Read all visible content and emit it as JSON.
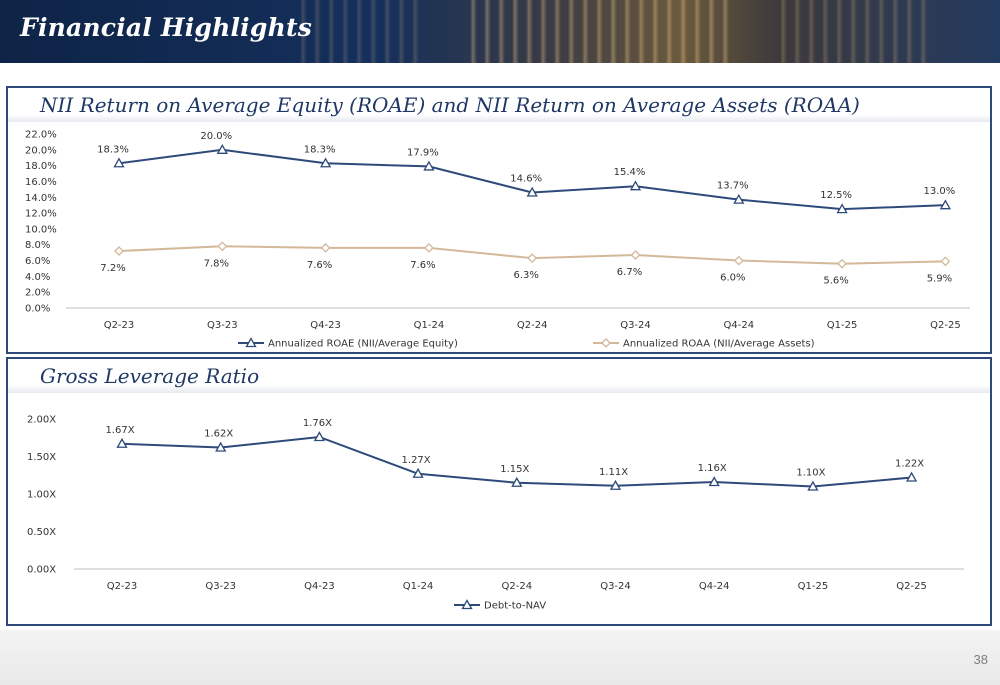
{
  "header": {
    "title": "Financial Highlights"
  },
  "page_number": "38",
  "colors": {
    "roae": "#2e4a7a",
    "roaa": "#d4b89a",
    "leverage": "#2e4a7a",
    "panel_border": "#2d4a7a",
    "banner": "#15305c"
  },
  "chart_data": [
    {
      "type": "line",
      "title": "NII Return on Average Equity (ROAE) and NII Return on Average Assets (ROAA)",
      "categories": [
        "Q2-23",
        "Q3-23",
        "Q4-23",
        "Q1-24",
        "Q2-24",
        "Q3-24",
        "Q4-24",
        "Q1-25",
        "Q2-25"
      ],
      "ylim": [
        0,
        22
      ],
      "yticks": [
        "0.0%",
        "2.0%",
        "4.0%",
        "6.0%",
        "8.0%",
        "10.0%",
        "12.0%",
        "14.0%",
        "16.0%",
        "18.0%",
        "20.0%",
        "22.0%"
      ],
      "legend_position": "bottom",
      "series": [
        {
          "name": "Annualized ROAE (NII/Average Equity)",
          "values": [
            18.3,
            20.0,
            18.3,
            17.9,
            14.6,
            15.4,
            13.7,
            12.5,
            13.0
          ],
          "labels": [
            "18.3%",
            "20.0%",
            "18.3%",
            "17.9%",
            "14.6%",
            "15.4%",
            "13.7%",
            "12.5%",
            "13.0%"
          ],
          "marker": "triangle"
        },
        {
          "name": "Annualized ROAA (NII/Average Assets)",
          "values": [
            7.2,
            7.8,
            7.6,
            7.6,
            6.3,
            6.7,
            6.0,
            5.6,
            5.9
          ],
          "labels": [
            "7.2%",
            "7.8%",
            "7.6%",
            "7.6%",
            "6.3%",
            "6.7%",
            "6.0%",
            "5.6%",
            "5.9%"
          ],
          "marker": "diamond"
        }
      ]
    },
    {
      "type": "line",
      "title": "Gross Leverage Ratio",
      "categories": [
        "Q2-23",
        "Q3-23",
        "Q4-23",
        "Q1-24",
        "Q2-24",
        "Q3-24",
        "Q4-24",
        "Q1-25",
        "Q2-25"
      ],
      "ylim": [
        0,
        2
      ],
      "yticks": [
        "0.00X",
        "0.50X",
        "1.00X",
        "1.50X",
        "2.00X"
      ],
      "legend_position": "bottom",
      "series": [
        {
          "name": "Debt-to-NAV",
          "values": [
            1.67,
            1.62,
            1.76,
            1.27,
            1.15,
            1.11,
            1.16,
            1.1,
            1.22
          ],
          "labels": [
            "1.67X",
            "1.62X",
            "1.76X",
            "1.27X",
            "1.15X",
            "1.11X",
            "1.16X",
            "1.10X",
            "1.22X"
          ],
          "marker": "triangle"
        }
      ]
    }
  ]
}
